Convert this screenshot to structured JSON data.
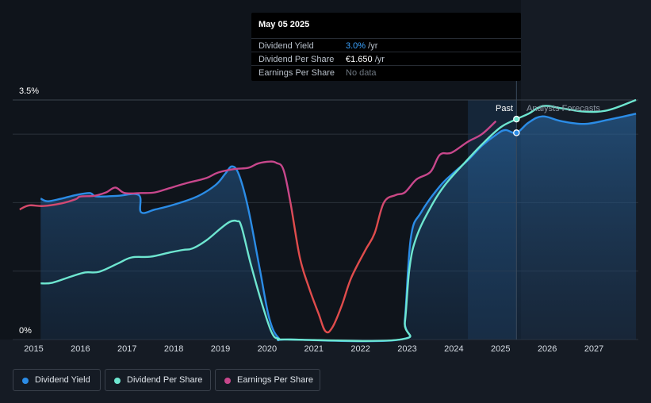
{
  "tooltip": {
    "date": "May 05 2025",
    "rows": [
      {
        "label": "Dividend Yield",
        "value": "3.0%",
        "unit": " /yr",
        "color": "#3ba3ff"
      },
      {
        "label": "Dividend Per Share",
        "value": "€1.650",
        "unit": " /yr",
        "color": "#ffffff"
      },
      {
        "label": "Earnings Per Share",
        "value": "No data",
        "unit": "",
        "color": "#6e7781"
      }
    ]
  },
  "labels": {
    "past": "Past",
    "forecast": "Analysts Forecasts"
  },
  "legend": [
    {
      "label": "Dividend Yield",
      "color": "#2b8ce6"
    },
    {
      "label": "Dividend Per Share",
      "color": "#6ee6d0"
    },
    {
      "label": "Earnings Per Share",
      "color": "#c8478c"
    }
  ],
  "chart_data": {
    "type": "line",
    "xlim": [
      2014.55,
      2027.95
    ],
    "ylim": [
      0,
      3.5
    ],
    "y_ticks": [
      {
        "value": 3.5,
        "label": "3.5%"
      },
      {
        "value": 0,
        "label": "0%"
      }
    ],
    "x_ticks": [
      "2015",
      "2016",
      "2017",
      "2018",
      "2019",
      "2020",
      "2021",
      "2022",
      "2023",
      "2024",
      "2025",
      "2026",
      "2027"
    ],
    "forecast_start": 2025.34,
    "highlight_start": 2024.3,
    "series": [
      {
        "name": "Dividend Yield",
        "color": "#2b8ce6",
        "fill": true,
        "points": [
          [
            2015.15,
            2.06
          ],
          [
            2015.3,
            2.02
          ],
          [
            2015.6,
            2.06
          ],
          [
            2015.9,
            2.11
          ],
          [
            2016.2,
            2.14
          ],
          [
            2016.35,
            2.09
          ],
          [
            2016.8,
            2.1
          ],
          [
            2017.25,
            2.11
          ],
          [
            2017.3,
            1.86
          ],
          [
            2017.6,
            1.9
          ],
          [
            2018.0,
            1.97
          ],
          [
            2018.5,
            2.09
          ],
          [
            2018.9,
            2.26
          ],
          [
            2019.1,
            2.42
          ],
          [
            2019.25,
            2.53
          ],
          [
            2019.4,
            2.4
          ],
          [
            2019.6,
            1.9
          ],
          [
            2019.85,
            1.0
          ],
          [
            2020.05,
            0.3
          ],
          [
            2020.25,
            0.02
          ],
          [
            2020.5,
            0.0
          ],
          [
            2022.85,
            0.0
          ],
          [
            2022.95,
            0.3
          ],
          [
            2023.08,
            1.5
          ],
          [
            2023.3,
            1.86
          ],
          [
            2023.7,
            2.24
          ],
          [
            2024.0,
            2.44
          ],
          [
            2024.3,
            2.62
          ],
          [
            2024.6,
            2.83
          ],
          [
            2024.9,
            2.99
          ],
          [
            2025.1,
            3.06
          ],
          [
            2025.34,
            3.02
          ],
          [
            2025.6,
            3.17
          ],
          [
            2025.9,
            3.26
          ],
          [
            2026.3,
            3.19
          ],
          [
            2026.8,
            3.15
          ],
          [
            2027.3,
            3.21
          ],
          [
            2027.9,
            3.3
          ]
        ]
      },
      {
        "name": "Dividend Per Share",
        "color": "#6ee6d0",
        "fill": false,
        "points": [
          [
            2015.15,
            0.82
          ],
          [
            2015.4,
            0.83
          ],
          [
            2015.8,
            0.92
          ],
          [
            2016.1,
            0.98
          ],
          [
            2016.4,
            0.99
          ],
          [
            2016.8,
            1.11
          ],
          [
            2017.1,
            1.2
          ],
          [
            2017.5,
            1.21
          ],
          [
            2017.9,
            1.27
          ],
          [
            2018.2,
            1.31
          ],
          [
            2018.4,
            1.33
          ],
          [
            2018.7,
            1.45
          ],
          [
            2019.0,
            1.62
          ],
          [
            2019.2,
            1.72
          ],
          [
            2019.35,
            1.73
          ],
          [
            2019.45,
            1.65
          ],
          [
            2019.65,
            1.1
          ],
          [
            2019.9,
            0.5
          ],
          [
            2020.1,
            0.1
          ],
          [
            2020.25,
            0.01
          ],
          [
            2020.5,
            0.0
          ],
          [
            2022.85,
            0.0
          ],
          [
            2022.95,
            0.25
          ],
          [
            2023.05,
            1.05
          ],
          [
            2023.2,
            1.5
          ],
          [
            2023.5,
            1.93
          ],
          [
            2023.8,
            2.25
          ],
          [
            2024.2,
            2.56
          ],
          [
            2024.6,
            2.85
          ],
          [
            2025.0,
            3.1
          ],
          [
            2025.34,
            3.22
          ],
          [
            2025.6,
            3.3
          ],
          [
            2025.9,
            3.41
          ],
          [
            2026.3,
            3.38
          ],
          [
            2026.8,
            3.33
          ],
          [
            2027.3,
            3.35
          ],
          [
            2027.9,
            3.5
          ]
        ]
      },
      {
        "name": "Earnings Per Share",
        "color": "#c8478c",
        "fill": false,
        "points": [
          [
            2014.7,
            1.9
          ],
          [
            2014.9,
            1.96
          ],
          [
            2015.2,
            1.95
          ],
          [
            2015.6,
            1.99
          ],
          [
            2015.9,
            2.05
          ],
          [
            2016.0,
            2.09
          ],
          [
            2016.3,
            2.1
          ],
          [
            2016.55,
            2.15
          ],
          [
            2016.75,
            2.22
          ],
          [
            2016.95,
            2.14
          ],
          [
            2017.3,
            2.14
          ],
          [
            2017.6,
            2.15
          ],
          [
            2017.9,
            2.21
          ],
          [
            2018.3,
            2.29
          ],
          [
            2018.7,
            2.36
          ],
          [
            2018.95,
            2.44
          ],
          [
            2019.3,
            2.49
          ],
          [
            2019.6,
            2.51
          ],
          [
            2019.8,
            2.57
          ],
          [
            2020.05,
            2.6
          ],
          [
            2020.2,
            2.58
          ],
          [
            2020.35,
            2.48
          ],
          [
            2020.5,
            2.0
          ],
          [
            2020.7,
            1.2
          ],
          [
            2020.9,
            0.75
          ],
          [
            2021.1,
            0.38
          ],
          [
            2021.25,
            0.12
          ],
          [
            2021.4,
            0.18
          ],
          [
            2021.6,
            0.5
          ],
          [
            2021.8,
            0.9
          ],
          [
            2022.1,
            1.3
          ],
          [
            2022.3,
            1.55
          ],
          [
            2022.5,
            2.0
          ],
          [
            2022.75,
            2.11
          ],
          [
            2022.95,
            2.15
          ],
          [
            2023.2,
            2.34
          ],
          [
            2023.5,
            2.45
          ],
          [
            2023.7,
            2.7
          ],
          [
            2023.95,
            2.73
          ],
          [
            2024.3,
            2.89
          ],
          [
            2024.6,
            3.0
          ],
          [
            2024.9,
            3.19
          ]
        ]
      }
    ],
    "markers": [
      {
        "series": "Dividend Per Share",
        "x": 2025.34,
        "y": 3.22
      },
      {
        "series": "Dividend Yield",
        "x": 2025.34,
        "y": 3.02
      }
    ]
  }
}
